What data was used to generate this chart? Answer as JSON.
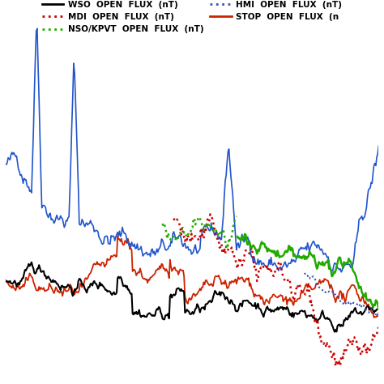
{
  "title": "",
  "background": "#ffffff",
  "n_points": 400,
  "seed": 42,
  "blue_color": "#2255cc",
  "black_color": "#000000",
  "red_color": "#cc2200",
  "mdi_color": "#cc0000",
  "nso_color": "#22aa00",
  "hmi_color": "#3355bb",
  "legend_wso": "WSO  OPEN  FLUX  (nT)",
  "legend_mdi": "MDI  OPEN  FLUX  (nT)",
  "legend_nso": "NSO/KPVT  OPEN  FLUX  (nT)",
  "legend_hmi": "HMI  OPEN  FLUX  (nT)",
  "legend_stop": "STOP  OPEN  FLUX  (n"
}
